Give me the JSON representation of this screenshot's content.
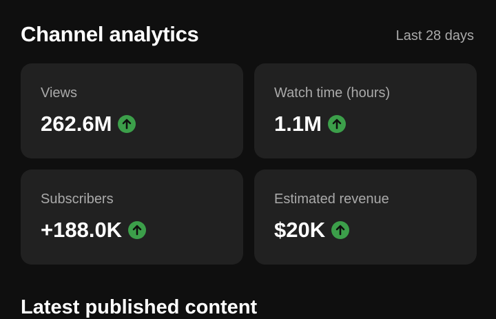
{
  "header": {
    "title": "Channel analytics",
    "period": "Last 28 days"
  },
  "cards": [
    {
      "label": "Views",
      "value": "262.6M"
    },
    {
      "label": "Watch time (hours)",
      "value": "1.1M"
    },
    {
      "label": "Subscribers",
      "value": "+188.0K"
    },
    {
      "label": "Estimated revenue",
      "value": "$20K"
    }
  ],
  "section": {
    "title": "Latest published content"
  }
}
